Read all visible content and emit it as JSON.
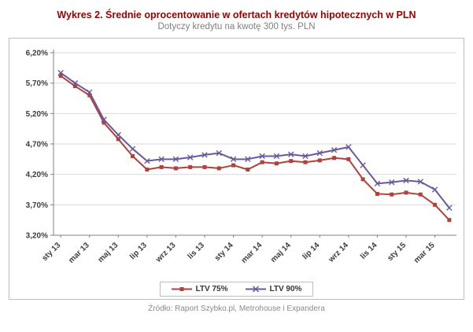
{
  "chart_data": {
    "type": "line",
    "title": "Wykres 2. Średnie oprocentowanie w ofertach kredytów hipotecznych w PLN",
    "subtitle": "Dotyczy kredytu na kwotę 300 tys. PLN",
    "source": "Źródło: Raport Szybko.pl, Metrohouse i Expandera",
    "ylim": [
      3.2,
      6.2
    ],
    "y_ticks": [
      3.2,
      3.7,
      4.2,
      4.7,
      5.2,
      5.7,
      6.2
    ],
    "y_tick_labels": [
      "3,20%",
      "3,70%",
      "4,20%",
      "4,70%",
      "5,20%",
      "5,70%",
      "6,20%"
    ],
    "x_tick_labels": [
      "sty 13",
      "mar 13",
      "maj 13",
      "lip 13",
      "wrz 13",
      "lis 13",
      "sty 14",
      "mar 14",
      "maj 14",
      "lip 14",
      "wrz 14",
      "lis 14",
      "sty 15",
      "mar 15"
    ],
    "x_tick_every": 2,
    "grid": true,
    "legend_position": "bottom",
    "series": [
      {
        "name": "LTV 75%",
        "color": "#b0413c",
        "marker": "square",
        "values": [
          5.82,
          5.65,
          5.5,
          5.05,
          4.78,
          4.5,
          4.28,
          4.32,
          4.3,
          4.32,
          4.32,
          4.3,
          4.35,
          4.28,
          4.4,
          4.38,
          4.42,
          4.4,
          4.43,
          4.47,
          4.45,
          4.12,
          3.88,
          3.87,
          3.9,
          3.87,
          3.7,
          3.45
        ]
      },
      {
        "name": "LTV 90%",
        "color": "#69599c",
        "marker": "x",
        "values": [
          5.87,
          5.7,
          5.55,
          5.1,
          4.85,
          4.62,
          4.42,
          4.45,
          4.45,
          4.48,
          4.52,
          4.55,
          4.45,
          4.45,
          4.5,
          4.5,
          4.53,
          4.5,
          4.55,
          4.6,
          4.65,
          4.35,
          4.05,
          4.07,
          4.1,
          4.08,
          3.95,
          3.65
        ]
      }
    ]
  }
}
